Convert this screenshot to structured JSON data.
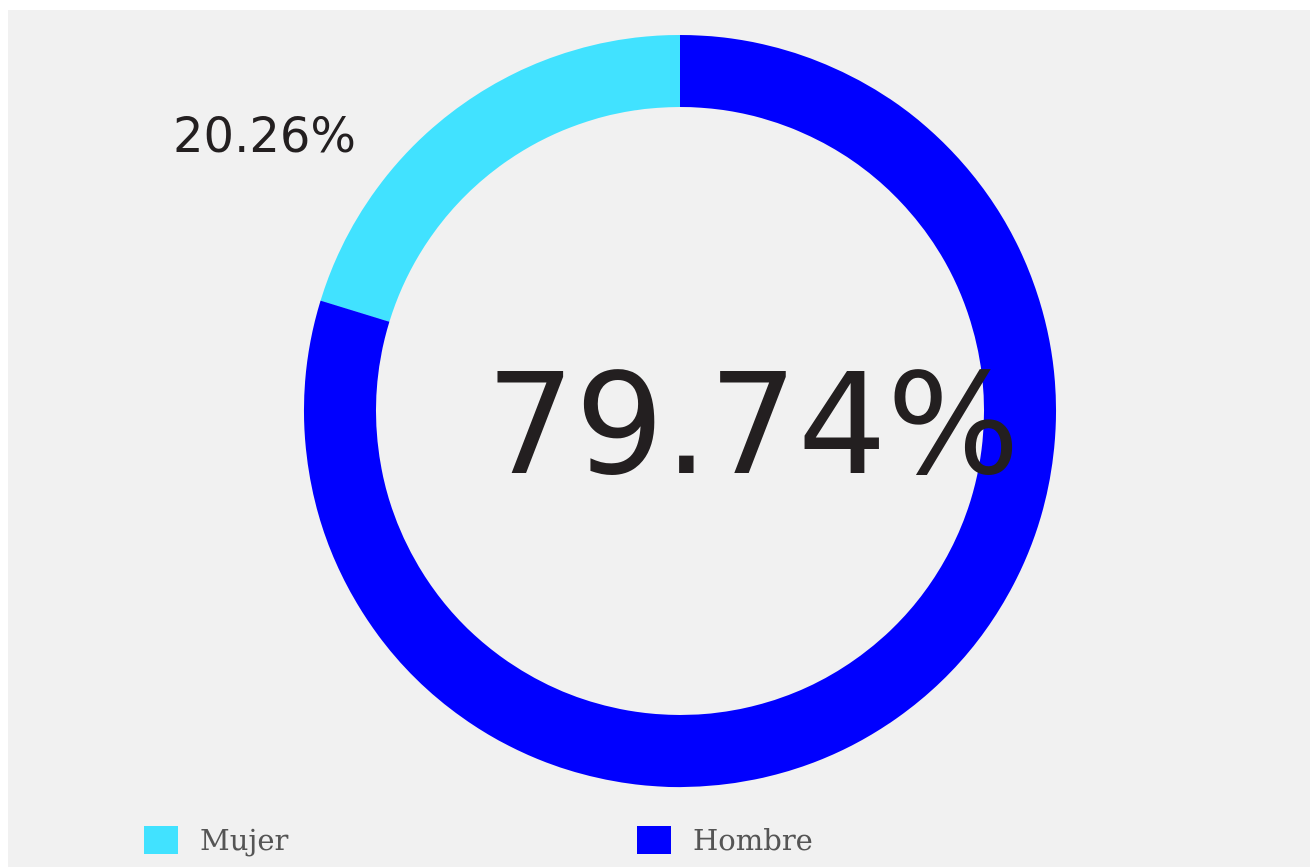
{
  "chart_data": {
    "type": "pie",
    "donut": true,
    "categories": [
      "Mujer",
      "Hombre"
    ],
    "values": [
      20.26,
      79.74
    ],
    "value_labels": [
      "20.26%",
      "79.74%"
    ],
    "colors": [
      "#41e2ff",
      "#0000ff"
    ],
    "center_label": "79.74%",
    "legend": {
      "placement": "bottom",
      "items": [
        {
          "label": "Mujer",
          "color": "#41e2ff"
        },
        {
          "label": "Hombre",
          "color": "#0000ff"
        }
      ]
    }
  }
}
